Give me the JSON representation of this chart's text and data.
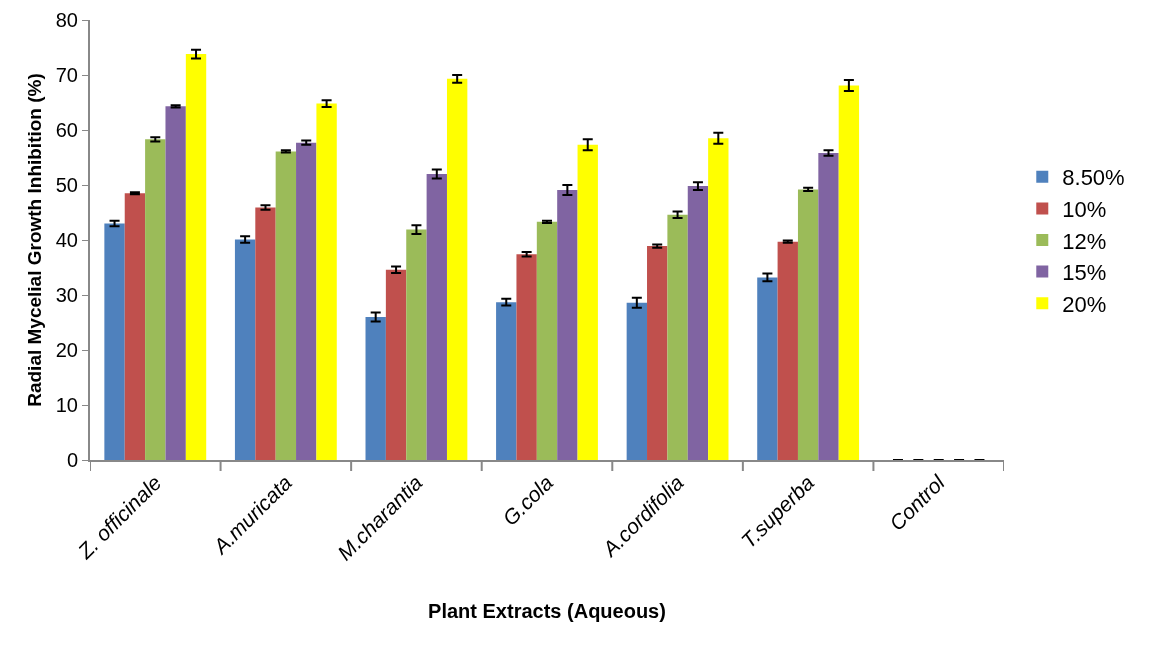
{
  "chart_data": {
    "type": "bar",
    "xlabel": "Plant Extracts (Aqueous)",
    "ylabel": "Radial Mycelial Growth Inhibition (%)",
    "categories": [
      "Z. officinale",
      "A.muricata",
      "M.charantia",
      "G.cola",
      "A.cordifolia",
      "T.superba",
      "Control"
    ],
    "series": [
      {
        "name": "8.50%",
        "color": "#4f81bd",
        "values": [
          43,
          40.1,
          26,
          28.7,
          28.6,
          33.2,
          0
        ],
        "errors": [
          0.5,
          0.6,
          0.8,
          0.6,
          0.9,
          0.7,
          null
        ]
      },
      {
        "name": "10%",
        "color": "#c0504d",
        "values": [
          48.5,
          45.9,
          34.6,
          37.4,
          38.9,
          39.7,
          0
        ],
        "errors": [
          0.2,
          0.4,
          0.6,
          0.4,
          0.3,
          0.2,
          null
        ]
      },
      {
        "name": "12%",
        "color": "#9bbb59",
        "values": [
          58.3,
          56.1,
          41.9,
          43.3,
          44.6,
          49.2,
          0
        ],
        "errors": [
          0.4,
          0.2,
          0.8,
          0.2,
          0.6,
          0.3,
          null
        ]
      },
      {
        "name": "15%",
        "color": "#8064a2",
        "values": [
          64.3,
          57.7,
          52,
          49.1,
          49.8,
          55.8,
          0
        ],
        "errors": [
          0.2,
          0.4,
          0.8,
          0.9,
          0.7,
          0.5,
          null
        ]
      },
      {
        "name": "20%",
        "color": "#ffff00",
        "values": [
          73.8,
          64.8,
          69.3,
          57.3,
          58.5,
          68.1,
          0
        ],
        "errors": [
          0.8,
          0.6,
          0.7,
          1,
          1,
          1,
          null
        ]
      }
    ],
    "ylim": [
      0,
      80
    ],
    "yticks": [
      0,
      10,
      20,
      30,
      40,
      50,
      60,
      70,
      80
    ],
    "grid": false,
    "legend": "right"
  }
}
